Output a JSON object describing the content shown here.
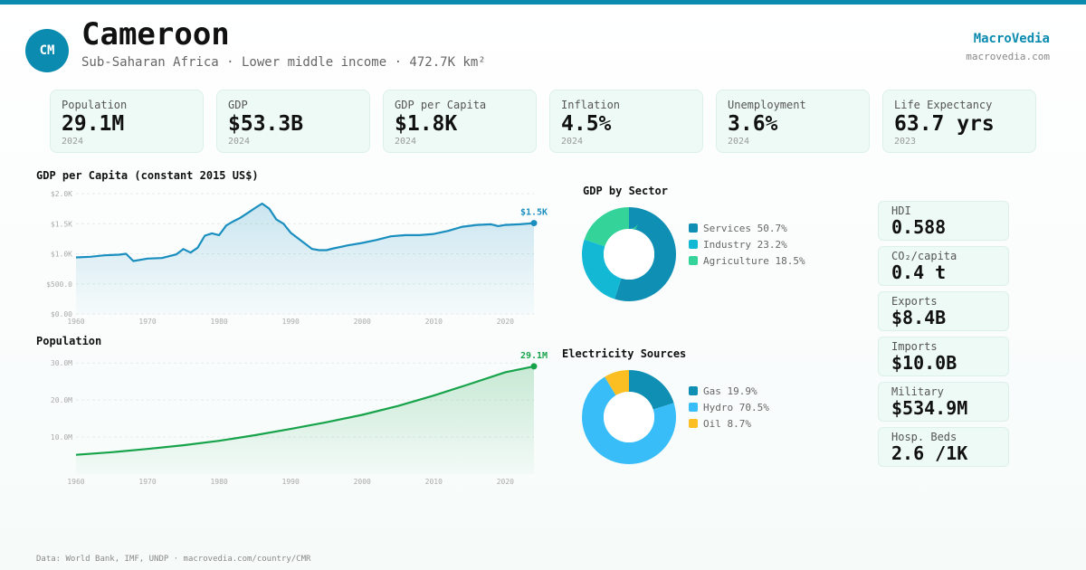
{
  "header": {
    "flag_code": "CM",
    "country": "Cameroon",
    "subtitle": "Sub-Saharan Africa · Lower middle income · 472.7K km²",
    "brand": "MacroVedia",
    "brand_url": "macrovedia.com"
  },
  "kpis": [
    {
      "label": "Population",
      "value": "29.1M",
      "year": "2024"
    },
    {
      "label": "GDP",
      "value": "$53.3B",
      "year": "2024"
    },
    {
      "label": "GDP per Capita",
      "value": "$1.8K",
      "year": "2024"
    },
    {
      "label": "Inflation",
      "value": "4.5%",
      "year": "2024"
    },
    {
      "label": "Unemployment",
      "value": "3.6%",
      "year": "2024"
    },
    {
      "label": "Life Expectancy",
      "value": "63.7 yrs",
      "year": "2023"
    }
  ],
  "stats": [
    {
      "label": "HDI",
      "value": "0.588"
    },
    {
      "label": "CO₂/capita",
      "value": "0.4 t"
    },
    {
      "label": "Exports",
      "value": "$8.4B"
    },
    {
      "label": "Imports",
      "value": "$10.0B"
    },
    {
      "label": "Military",
      "value": "$534.9M"
    },
    {
      "label": "Hosp. Beds",
      "value": "2.6 /1K"
    }
  ],
  "footer": "Data: World Bank, IMF, UNDP · macrovedia.com/country/CMR",
  "colors": {
    "accent": "#0b8bb0",
    "gdp_line": "#1a8fbf",
    "pop_line": "#16a34a"
  },
  "chart_data": [
    {
      "id": "gdp_pc",
      "type": "area",
      "title": "GDP per Capita (constant 2015 US$)",
      "end_label": "$1.5K",
      "ylim": [
        0,
        2000
      ],
      "xlim": [
        1960,
        2024
      ],
      "y_ticks": [
        {
          "v": 0,
          "label": "$0.00"
        },
        {
          "v": 500,
          "label": "$500.0"
        },
        {
          "v": 1000,
          "label": "$1.0K"
        },
        {
          "v": 1500,
          "label": "$1.5K"
        },
        {
          "v": 2000,
          "label": "$2.0K"
        }
      ],
      "x_ticks": [
        "1960",
        "1970",
        "1980",
        "1990",
        "2000",
        "2010",
        "2020"
      ],
      "x": [
        1960,
        1962,
        1964,
        1966,
        1967,
        1968,
        1970,
        1972,
        1974,
        1975,
        1976,
        1977,
        1978,
        1979,
        1980,
        1981,
        1982,
        1983,
        1984,
        1985,
        1986,
        1987,
        1988,
        1989,
        1990,
        1991,
        1992,
        1993,
        1994,
        1995,
        1996,
        1998,
        2000,
        2002,
        2004,
        2006,
        2008,
        2010,
        2012,
        2014,
        2016,
        2018,
        2019,
        2020,
        2022,
        2024
      ],
      "values": [
        940,
        950,
        975,
        985,
        1000,
        880,
        920,
        930,
        990,
        1080,
        1020,
        1100,
        1300,
        1340,
        1310,
        1470,
        1540,
        1600,
        1680,
        1760,
        1835,
        1750,
        1570,
        1500,
        1350,
        1260,
        1170,
        1080,
        1060,
        1060,
        1090,
        1140,
        1180,
        1230,
        1290,
        1310,
        1310,
        1330,
        1380,
        1450,
        1480,
        1490,
        1460,
        1480,
        1490,
        1510
      ]
    },
    {
      "id": "population",
      "type": "area",
      "title": "Population",
      "end_label": "29.1M",
      "ylim": [
        0,
        32
      ],
      "xlim": [
        1960,
        2024
      ],
      "y_ticks": [
        {
          "v": 10,
          "label": "10.0M"
        },
        {
          "v": 20,
          "label": "20.0M"
        },
        {
          "v": 30,
          "label": "30.0M"
        }
      ],
      "x_ticks": [
        "1960",
        "1970",
        "1980",
        "1990",
        "2000",
        "2010",
        "2020"
      ],
      "x": [
        1960,
        1965,
        1970,
        1975,
        1980,
        1985,
        1990,
        1995,
        2000,
        2005,
        2010,
        2015,
        2020,
        2024
      ],
      "values": [
        5.2,
        5.9,
        6.8,
        7.8,
        9.0,
        10.5,
        12.2,
        14.0,
        16.0,
        18.4,
        21.2,
        24.3,
        27.5,
        29.1
      ]
    },
    {
      "id": "sectors",
      "type": "pie",
      "title": "GDP by Sector",
      "series": [
        {
          "name": "Services",
          "value": 50.7,
          "label": "Services 50.7%",
          "color": "#0e8fb3"
        },
        {
          "name": "Industry",
          "value": 23.2,
          "label": "Industry 23.2%",
          "color": "#12b8d4"
        },
        {
          "name": "Agriculture",
          "value": 18.5,
          "label": "Agriculture 18.5%",
          "color": "#34d399"
        }
      ]
    },
    {
      "id": "electricity",
      "type": "pie",
      "title": "Electricity Sources",
      "series": [
        {
          "name": "Gas",
          "value": 19.9,
          "label": "Gas 19.9%",
          "color": "#0e8fb3"
        },
        {
          "name": "Hydro",
          "value": 70.5,
          "label": "Hydro 70.5%",
          "color": "#38bdf8"
        },
        {
          "name": "Oil",
          "value": 8.7,
          "label": "Oil 8.7%",
          "color": "#fbbf24"
        }
      ]
    }
  ]
}
